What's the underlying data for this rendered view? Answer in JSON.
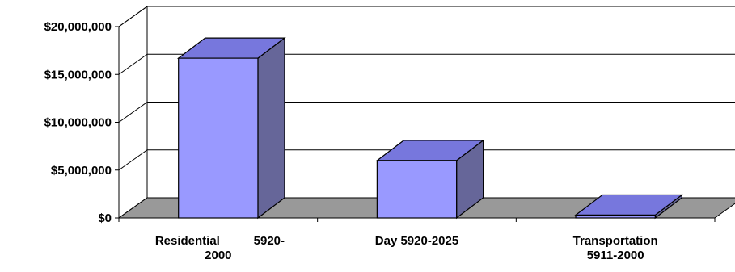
{
  "chart_data": {
    "type": "bar",
    "style": "3d-column",
    "title": "",
    "xlabel": "",
    "ylabel": "",
    "categories": [
      [
        "Residential",
        "5920-",
        "2000"
      ],
      [
        "Day 5920-2025"
      ],
      [
        "Transportation",
        "5911-2000"
      ]
    ],
    "values": [
      16700000,
      6000000,
      300000
    ],
    "ylim": [
      0,
      20000000
    ],
    "yticks": [
      {
        "value": 0,
        "label": "$0"
      },
      {
        "value": 5000000,
        "label": "$5,000,000"
      },
      {
        "value": 10000000,
        "label": "$10,000,000"
      },
      {
        "value": 15000000,
        "label": "$15,000,000"
      },
      {
        "value": 20000000,
        "label": "$20,000,000"
      }
    ],
    "grid": true,
    "legend": "none",
    "colors": {
      "bar_front": "#9999ff",
      "bar_top": "#7777dd",
      "bar_side": "#666699",
      "floor": "#999999",
      "axis": "#000000"
    }
  }
}
